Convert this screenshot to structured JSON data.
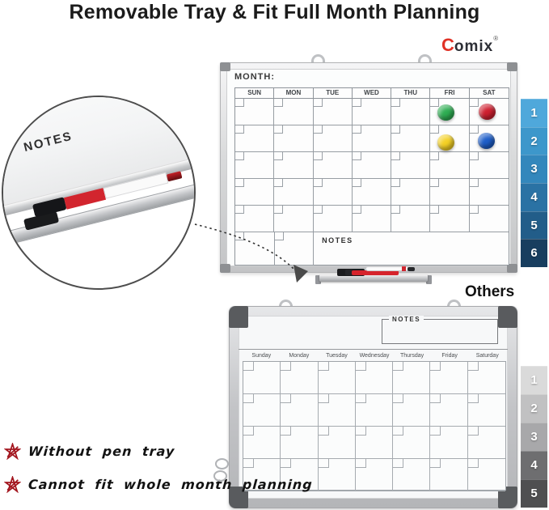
{
  "title": "Removable Tray & Fit Full Month Planning",
  "brand": {
    "c": "C",
    "rest": "omix",
    "mark": "®"
  },
  "comix_board": {
    "month_label": "MONTH:",
    "day_headers": [
      "SUN",
      "MON",
      "TUE",
      "WED",
      "THU",
      "FRI",
      "SAT"
    ],
    "notes_label": "NOTES",
    "grid": {
      "rows": 5,
      "cols": 7
    },
    "magnets": [
      {
        "name": "green",
        "color": "#2fae53"
      },
      {
        "name": "red",
        "color": "#cf2030"
      },
      {
        "name": "yellow",
        "color": "#f4d125"
      },
      {
        "name": "blue",
        "color": "#1e5ec9"
      }
    ],
    "side_tabs": [
      {
        "label": "1",
        "color": "#4fa8db"
      },
      {
        "label": "2",
        "color": "#3d97cb"
      },
      {
        "label": "3",
        "color": "#3387bc"
      },
      {
        "label": "4",
        "color": "#2a72a4"
      },
      {
        "label": "5",
        "color": "#225d89"
      },
      {
        "label": "6",
        "color": "#183e5f"
      }
    ]
  },
  "inset": {
    "notes_label": "NOTES"
  },
  "others_heading": "Others",
  "other_board": {
    "notes_label": "NOTES",
    "day_headers": [
      "Sunday",
      "Monday",
      "Tuesday",
      "Wednesday",
      "Thursday",
      "Friday",
      "Saturday"
    ],
    "grid": {
      "rows": 4,
      "cols": 7
    },
    "side_tabs": [
      {
        "label": "1",
        "color": "#dadada"
      },
      {
        "label": "2",
        "color": "#c1c1c2"
      },
      {
        "label": "3",
        "color": "#a8a8aa"
      },
      {
        "label": "4",
        "color": "#6e6e70"
      },
      {
        "label": "5",
        "color": "#4f4f51"
      }
    ]
  },
  "drawbacks": [
    {
      "text": "Without pen tray"
    },
    {
      "text": "Cannot fit whole month planning"
    }
  ],
  "colors": {
    "accent_red": "#e03226",
    "cross_icon": "#a3161f",
    "title_text": "#1b1b1b"
  }
}
